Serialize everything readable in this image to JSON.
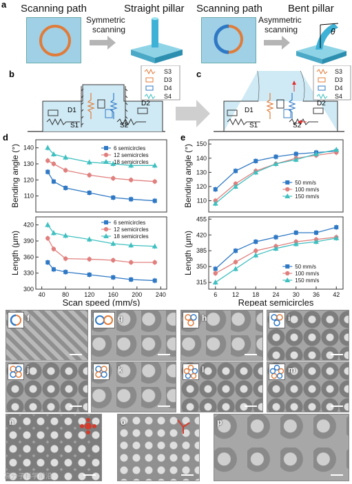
{
  "panel_labels": {
    "a": "a",
    "b": "b",
    "c": "c",
    "d": "d",
    "e": "e",
    "f": "f",
    "g": "g",
    "h": "h",
    "i": "i",
    "j": "j",
    "k": "k",
    "l": "l",
    "m": "m",
    "n": "n",
    "o": "o",
    "p": "p"
  },
  "panel_a": {
    "left_title": "Scanning path",
    "left_arrow_label_1": "Symmetric",
    "left_arrow_label_2": "scanning",
    "left_result": "Straight pillar",
    "right_title": "Scanning path",
    "right_arrow_label_1": "Asymmetric",
    "right_arrow_label_2": "scanning",
    "right_result": "Bent pillar",
    "theta": "θ"
  },
  "panel_b": {
    "legend": [
      "S3",
      "D3",
      "D4",
      "S4"
    ],
    "labels": {
      "d1": "D1",
      "s1": "S1",
      "d2": "D2",
      "s2": "S2"
    }
  },
  "panel_c": {
    "legend": [
      "S3",
      "D3",
      "D4",
      "S4"
    ],
    "labels": {
      "d1": "D1",
      "s1": "S1",
      "d2": "D2",
      "s2": "S2"
    }
  },
  "colors": {
    "blue": "#2f78c4",
    "pink": "#e0807e",
    "teal": "#3fbfbf",
    "orange": "#e07b39",
    "mech_bg": "#cfeaf5"
  },
  "chart_data": [
    {
      "type": "line",
      "panel": "d-top",
      "xlabel": "",
      "ylabel": "Bending angle (°)",
      "xlim": [
        30,
        250
      ],
      "ylim": [
        100,
        145
      ],
      "yticks": [
        110,
        120,
        130,
        140
      ],
      "x": [
        50,
        60,
        80,
        120,
        160,
        190,
        230
      ],
      "series": [
        {
          "name": "6 semicircles",
          "values": [
            125,
            119,
            115,
            112,
            109,
            108,
            107
          ]
        },
        {
          "name": "12 semicircles",
          "values": [
            132,
            130,
            126,
            123,
            121,
            120,
            119
          ]
        },
        {
          "name": "18 semicircles",
          "values": [
            140,
            136,
            134,
            131,
            130,
            129,
            129
          ]
        }
      ]
    },
    {
      "type": "line",
      "panel": "d-bottom",
      "xlabel": "Scan speed (mm/s)",
      "ylabel": "Length (μm)",
      "xlim": [
        30,
        250
      ],
      "ylim": [
        300,
        435
      ],
      "yticks": [
        300,
        330,
        360,
        390,
        420
      ],
      "xticks": [
        40,
        80,
        120,
        160,
        200,
        240
      ],
      "x": [
        50,
        60,
        80,
        120,
        160,
        190,
        230
      ],
      "series": [
        {
          "name": "6 semicircles",
          "values": [
            350,
            337,
            332,
            327,
            322,
            318,
            316
          ]
        },
        {
          "name": "12 semicircles",
          "values": [
            395,
            375,
            357,
            356,
            354,
            350,
            350
          ]
        },
        {
          "name": "18 semicircles",
          "values": [
            420,
            405,
            400,
            393,
            385,
            382,
            380
          ]
        }
      ]
    },
    {
      "type": "line",
      "panel": "e-top",
      "xlabel": "",
      "ylabel": "Bending angle (°)",
      "xlim": [
        4,
        44
      ],
      "ylim": [
        102,
        153
      ],
      "yticks": [
        110,
        120,
        130,
        140,
        150
      ],
      "x": [
        6,
        12,
        18,
        24,
        30,
        36,
        42
      ],
      "series": [
        {
          "name": "50 mm/s",
          "values": [
            118,
            131,
            138,
            141,
            143,
            144,
            145
          ]
        },
        {
          "name": "100 mm/s",
          "values": [
            110,
            122,
            131,
            136,
            140,
            142,
            144
          ]
        },
        {
          "name": "150 mm/s",
          "values": [
            108,
            120,
            130,
            136,
            139,
            143,
            146
          ]
        }
      ]
    },
    {
      "type": "line",
      "panel": "e-bottom",
      "xlabel": "Repeat semicircles",
      "ylabel": "Length (μm)",
      "xlim": [
        4,
        44
      ],
      "ylim": [
        300,
        460
      ],
      "yticks": [
        315,
        350,
        385,
        420,
        455
      ],
      "xticks": [
        6,
        12,
        18,
        24,
        30,
        36,
        42
      ],
      "x": [
        6,
        12,
        18,
        24,
        30,
        36,
        42
      ],
      "series": [
        {
          "name": "50 mm/s",
          "values": [
            345,
            385,
            405,
            415,
            425,
            425,
            437
          ]
        },
        {
          "name": "100 mm/s",
          "values": [
            335,
            360,
            385,
            395,
            405,
            410,
            415
          ]
        },
        {
          "name": "150 mm/s",
          "values": [
            315,
            345,
            375,
            390,
            400,
            405,
            413
          ]
        }
      ]
    }
  ],
  "watermark": "高分子科学前沿"
}
